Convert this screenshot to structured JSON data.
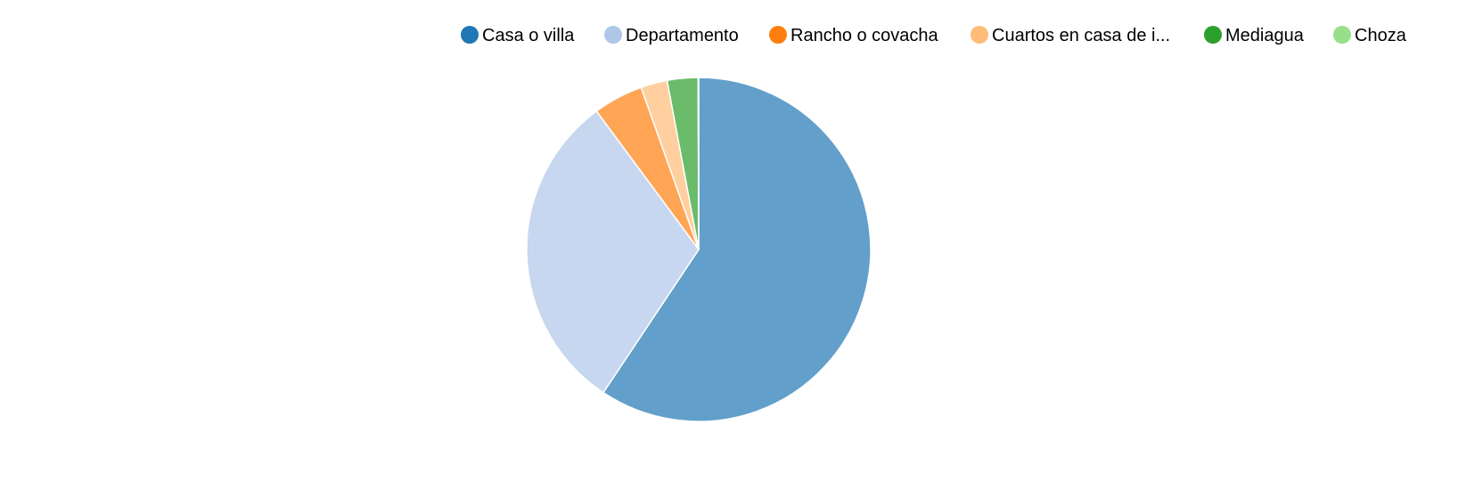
{
  "chart_data": {
    "type": "pie",
    "legend_position": "top-right",
    "categories": [
      "Casa o villa",
      "Departamento",
      "Rancho o covacha",
      "Cuartos en casa de i...",
      "Mediagua",
      "Choza"
    ],
    "values": [
      59.5,
      30.6,
      4.7,
      2.5,
      2.9,
      0.05
    ],
    "colors": {
      "legend": [
        "#1f77b4",
        "#aec7e8",
        "#ff7f0e",
        "#ffbb78",
        "#2ca02c",
        "#98df8a"
      ],
      "slices": [
        "#629fca",
        "#c6d7ef",
        "#ffa556",
        "#ffcf9f",
        "#6abc6a",
        "#b6e9ad"
      ]
    }
  }
}
